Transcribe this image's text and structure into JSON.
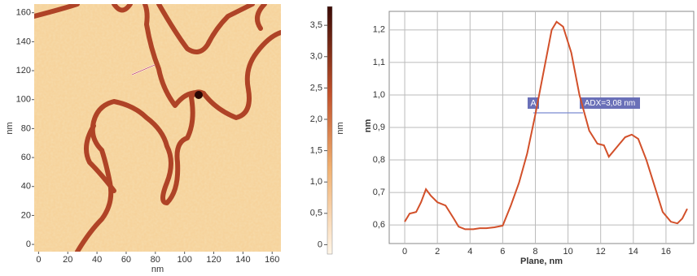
{
  "chart_data": [
    {
      "type": "image",
      "xlabel": "nm",
      "ylabel": "nm",
      "xlim": [
        -3,
        166
      ],
      "ylim": [
        -5,
        166
      ],
      "xticks": [
        0,
        20,
        40,
        60,
        80,
        100,
        120,
        140,
        160
      ],
      "yticks": [
        0,
        20,
        40,
        60,
        80,
        100,
        120,
        140,
        160
      ],
      "colorbar": {
        "label": "nm",
        "lim": [
          -0.15,
          3.8
        ],
        "ticks": [
          0,
          {
            "value": 0.5,
            "label": "0,5"
          },
          {
            "value": 1.0,
            "label": "1,0"
          },
          {
            "value": 1.5,
            "label": "1,5"
          },
          {
            "value": 2.0,
            "label": "2,0"
          },
          {
            "value": 2.5,
            "label": "2,5"
          },
          {
            "value": 3.0,
            "label": "3,0"
          },
          {
            "value": 3.5,
            "label": "3,5"
          }
        ]
      }
    },
    {
      "type": "line",
      "xlabel": "Plane, nm",
      "ylabel": "nm",
      "xlim": [
        -0.95,
        17.7
      ],
      "ylim": [
        0.543,
        1.257
      ],
      "xticks": [
        0,
        2,
        4,
        6,
        8,
        10,
        12,
        14,
        16
      ],
      "yticks": [
        {
          "value": 0.6,
          "label": "0,6"
        },
        {
          "value": 0.7,
          "label": "0,7"
        },
        {
          "value": 0.8,
          "label": "0,8"
        },
        {
          "value": 0.9,
          "label": "0,9"
        },
        {
          "value": 1.0,
          "label": "1,0"
        },
        {
          "value": 1.1,
          "label": "1,1"
        },
        {
          "value": 1.2,
          "label": "1,2"
        }
      ],
      "grid": true,
      "annotations": [
        "A",
        "ADX=3,08 nm"
      ],
      "series": [
        {
          "color": "#d2502a",
          "x": [
            0,
            0.3,
            0.7,
            1.0,
            1.3,
            1.6,
            2.0,
            2.5,
            3.0,
            3.3,
            3.7,
            4.2,
            4.6,
            5.0,
            5.5,
            6.0,
            6.5,
            7.0,
            7.5,
            8.0,
            8.5,
            9.0,
            9.3,
            9.7,
            10.2,
            10.7,
            11.3,
            11.8,
            12.2,
            12.5,
            13.0,
            13.5,
            13.9,
            14.3,
            14.8,
            15.3,
            15.8,
            16.3,
            16.7,
            17.0,
            17.3
          ],
          "values": [
            0.61,
            0.635,
            0.64,
            0.67,
            0.71,
            0.69,
            0.67,
            0.66,
            0.62,
            0.595,
            0.587,
            0.587,
            0.59,
            0.59,
            0.593,
            0.598,
            0.66,
            0.73,
            0.82,
            0.94,
            1.07,
            1.2,
            1.225,
            1.21,
            1.13,
            1.0,
            0.89,
            0.85,
            0.845,
            0.81,
            0.84,
            0.87,
            0.878,
            0.865,
            0.8,
            0.72,
            0.64,
            0.61,
            0.605,
            0.62,
            0.65
          ]
        }
      ]
    }
  ]
}
